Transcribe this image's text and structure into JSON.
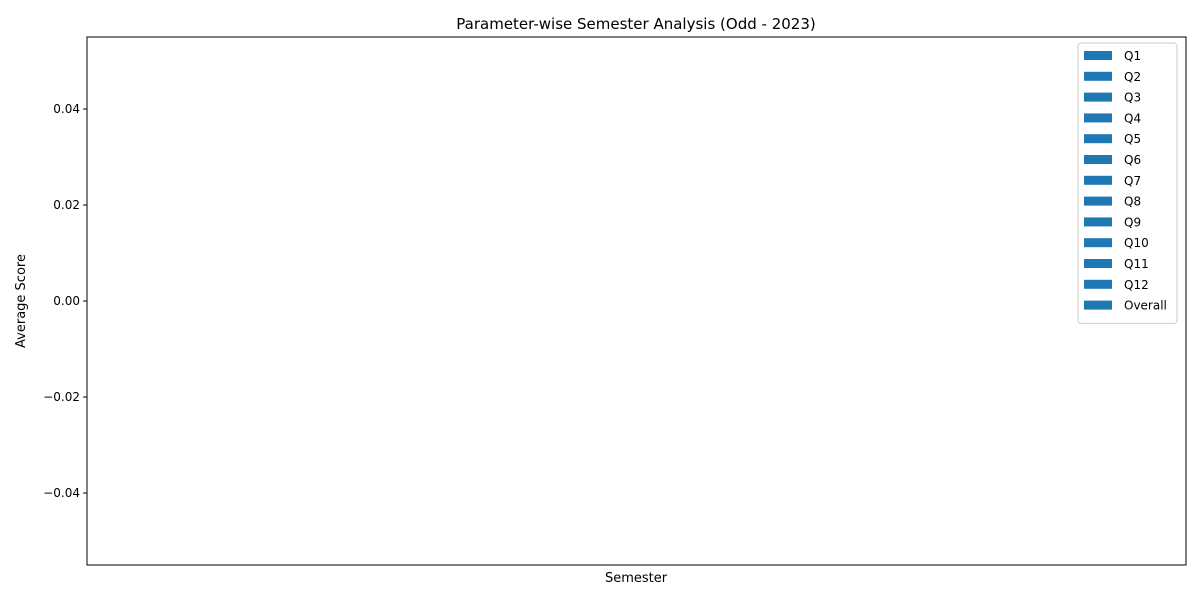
{
  "chart_data": {
    "type": "bar",
    "title": "Parameter-wise Semester Analysis (Odd - 2023)",
    "xlabel": "Semester",
    "ylabel": "Average Score",
    "categories": [],
    "series": [
      {
        "name": "Q1",
        "values": []
      },
      {
        "name": "Q2",
        "values": []
      },
      {
        "name": "Q3",
        "values": []
      },
      {
        "name": "Q4",
        "values": []
      },
      {
        "name": "Q5",
        "values": []
      },
      {
        "name": "Q6",
        "values": []
      },
      {
        "name": "Q7",
        "values": []
      },
      {
        "name": "Q8",
        "values": []
      },
      {
        "name": "Q9",
        "values": []
      },
      {
        "name": "Q10",
        "values": []
      },
      {
        "name": "Q11",
        "values": []
      },
      {
        "name": "Q12",
        "values": []
      },
      {
        "name": "Overall",
        "values": []
      }
    ],
    "ylim": [
      -0.055,
      0.055
    ],
    "yticks": [
      -0.04,
      -0.02,
      0.0,
      0.02,
      0.04
    ],
    "ytick_labels": [
      "−0.04",
      "−0.02",
      "0.00",
      "0.02",
      "0.04"
    ],
    "grid": false,
    "legend_position": "upper right",
    "bar_color": "#1f77b4"
  }
}
